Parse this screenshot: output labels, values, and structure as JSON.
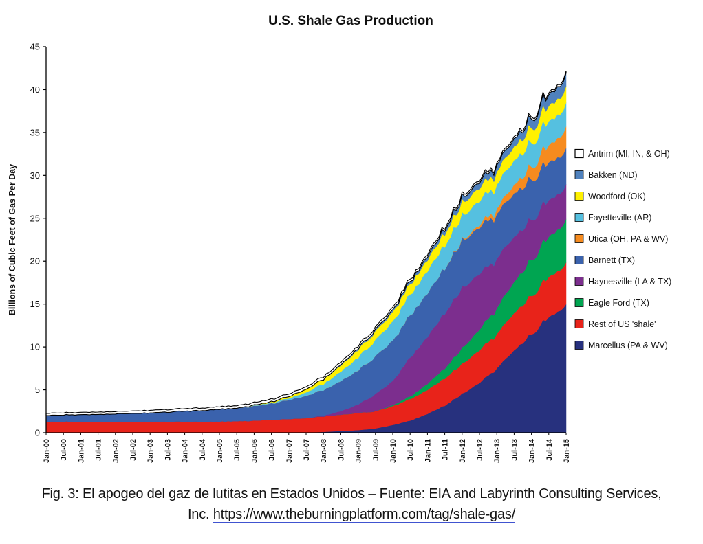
{
  "figure": {
    "caption_line1": "Fig. 3: El apogeo del gaz de lutitas en Estados Unidos – Fuente: EIA and Labyrinth Consulting Services,",
    "caption_line2_prefix": "Inc. ",
    "caption_link": "https://www.theburningplatform.com/tag/shale-gas/"
  },
  "chart_data": {
    "type": "area",
    "stacked": true,
    "title": "U.S. Shale Gas Production",
    "xlabel": "",
    "ylabel": "Billions of Cubic Feet of Gas Per Day",
    "ylim": [
      0,
      45
    ],
    "y_ticks": [
      0,
      5,
      10,
      15,
      20,
      25,
      30,
      35,
      40,
      45
    ],
    "grid": false,
    "legend_position": "right",
    "x_tick_rotation": 90,
    "x_tick_labels": [
      "Jan-00",
      "Jul-00",
      "Jan-01",
      "Jul-01",
      "Jan-02",
      "Jul-02",
      "Jan-03",
      "Jul-03",
      "Jan-04",
      "Jul-04",
      "Jan-05",
      "Jul-05",
      "Jan-06",
      "Jul-06",
      "Jan-07",
      "Jul-07",
      "Jan-08",
      "Jul-08",
      "Jan-09",
      "Jul-09",
      "Jan-10",
      "Jul-10",
      "Jan-11",
      "Jul-11",
      "Jan-12",
      "Jul-12",
      "Jan-13",
      "Jul-13",
      "Jan-14",
      "Jul-14",
      "Jan-15"
    ],
    "units": "Bcf/d",
    "series": [
      {
        "id": "marcellus",
        "name": "Marcellus (PA & WV)",
        "color": "#27317E",
        "values": [
          0,
          0,
          0,
          0,
          0,
          0,
          0,
          0,
          0,
          0,
          0,
          0,
          0,
          0,
          0,
          0,
          0.1,
          0.2,
          0.3,
          0.5,
          0.9,
          1.4,
          2.2,
          3.2,
          4.5,
          5.8,
          7.5,
          9.5,
          11.5,
          13.5,
          14.8
        ]
      },
      {
        "id": "rest-of-us-shale",
        "name": "Rest of US 'shale'",
        "color": "#E8231A",
        "values": [
          1.3,
          1.3,
          1.3,
          1.3,
          1.3,
          1.3,
          1.3,
          1.3,
          1.3,
          1.3,
          1.3,
          1.35,
          1.4,
          1.5,
          1.6,
          1.7,
          1.8,
          1.9,
          2.0,
          2.0,
          2.2,
          2.5,
          2.8,
          3.2,
          3.5,
          3.8,
          4.0,
          4.3,
          4.5,
          4.7,
          4.8
        ]
      },
      {
        "id": "eagle-ford",
        "name": "Eagle Ford (TX)",
        "color": "#00A551",
        "values": [
          0,
          0,
          0,
          0,
          0,
          0,
          0,
          0,
          0,
          0,
          0,
          0,
          0,
          0,
          0,
          0,
          0,
          0,
          0,
          0,
          0.1,
          0.3,
          0.7,
          1.2,
          1.8,
          2.4,
          3.0,
          3.6,
          4.2,
          4.7,
          5.0
        ]
      },
      {
        "id": "haynesville",
        "name": "Haynesville (LA & TX)",
        "color": "#7C2E8E",
        "values": [
          0,
          0,
          0,
          0,
          0,
          0,
          0,
          0,
          0,
          0,
          0,
          0,
          0,
          0,
          0,
          0,
          0.1,
          0.4,
          1.0,
          2.0,
          2.8,
          4.5,
          5.5,
          6.5,
          7.0,
          6.5,
          5.8,
          5.2,
          4.7,
          4.3,
          4.0
        ]
      },
      {
        "id": "barnett",
        "name": "Barnett (TX)",
        "color": "#3A62AD",
        "values": [
          0.7,
          0.75,
          0.8,
          0.85,
          0.9,
          0.95,
          1.0,
          1.1,
          1.2,
          1.3,
          1.4,
          1.5,
          1.7,
          1.9,
          2.2,
          2.6,
          3.0,
          3.5,
          4.0,
          4.4,
          4.7,
          4.9,
          5.1,
          5.3,
          5.5,
          5.4,
          5.2,
          5.0,
          4.7,
          4.4,
          4.2
        ]
      },
      {
        "id": "utica",
        "name": "Utica (OH, PA & WV)",
        "color": "#F68B1F",
        "values": [
          0,
          0,
          0,
          0,
          0,
          0,
          0,
          0,
          0,
          0,
          0,
          0,
          0,
          0,
          0,
          0,
          0,
          0,
          0,
          0,
          0,
          0,
          0,
          0,
          0.1,
          0.3,
          0.6,
          1.0,
          1.5,
          2.0,
          2.5
        ]
      },
      {
        "id": "fayetteville",
        "name": "Fayetteville (AR)",
        "color": "#55C0E0",
        "values": [
          0,
          0,
          0,
          0,
          0,
          0,
          0,
          0,
          0,
          0,
          0,
          0,
          0.05,
          0.1,
          0.2,
          0.4,
          0.7,
          1.1,
          1.5,
          1.9,
          2.2,
          2.4,
          2.6,
          2.7,
          2.8,
          2.8,
          2.8,
          2.8,
          2.8,
          2.8,
          2.7
        ]
      },
      {
        "id": "woodford",
        "name": "Woodford (OK)",
        "color": "#FFF100",
        "values": [
          0,
          0,
          0,
          0,
          0,
          0,
          0,
          0,
          0,
          0,
          0,
          0,
          0.05,
          0.1,
          0.2,
          0.35,
          0.5,
          0.7,
          0.9,
          1.0,
          1.1,
          1.2,
          1.3,
          1.4,
          1.5,
          1.5,
          1.5,
          1.6,
          1.7,
          1.8,
          1.9
        ]
      },
      {
        "id": "bakken",
        "name": "Bakken (ND)",
        "color": "#4F81BD",
        "values": [
          0,
          0,
          0,
          0,
          0,
          0,
          0,
          0,
          0,
          0,
          0,
          0,
          0,
          0,
          0,
          0,
          0.05,
          0.1,
          0.15,
          0.2,
          0.25,
          0.3,
          0.4,
          0.5,
          0.6,
          0.7,
          0.8,
          0.9,
          1.1,
          1.3,
          1.5
        ]
      },
      {
        "id": "antrim",
        "name": "Antrim (MI, IN, & OH)",
        "color": "#FFFFFF",
        "outline": "#000000",
        "values": [
          0.25,
          0.26,
          0.27,
          0.28,
          0.28,
          0.29,
          0.3,
          0.3,
          0.3,
          0.3,
          0.3,
          0.3,
          0.3,
          0.3,
          0.3,
          0.3,
          0.3,
          0.3,
          0.3,
          0.29,
          0.28,
          0.28,
          0.27,
          0.26,
          0.26,
          0.25,
          0.25,
          0.24,
          0.24,
          0.23,
          0.22
        ]
      }
    ]
  }
}
